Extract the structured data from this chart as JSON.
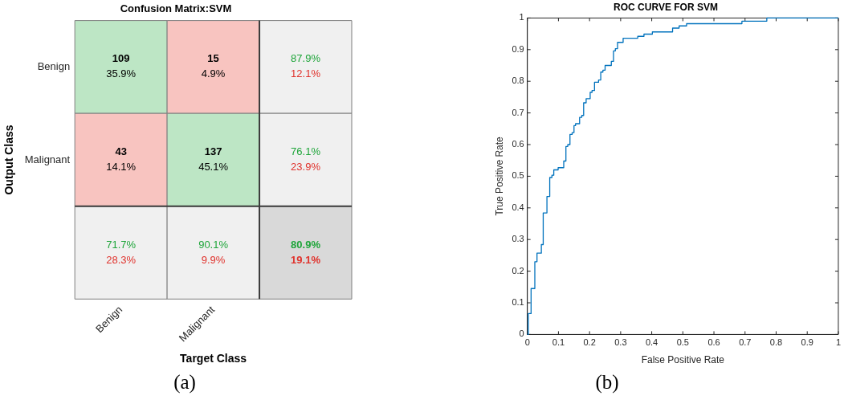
{
  "chart_data": [
    {
      "type": "heatmap",
      "title": "Confusion Matrix:SVM",
      "xlabel": "Target Class",
      "ylabel": "Output Class",
      "categories": [
        "Benign",
        "Malignant",
        null
      ],
      "y_categories": [
        "Benign",
        "Malignant",
        null
      ],
      "cells": [
        [
          109,
          15,
          87.9
        ],
        [
          43,
          137,
          76.1
        ],
        [
          71.7,
          90.1,
          80.9
        ]
      ],
      "cell_labels": [
        [
          "109",
          "15",
          "87.9%"
        ],
        [
          "43",
          "137",
          "76.1%"
        ],
        [
          "71.7%",
          "90.1%",
          "80.9%"
        ]
      ],
      "colors": [
        [
          "#bde6c5",
          "#f8c4c0",
          "#f0f0f0"
        ],
        [
          "#f8c4c0",
          "#bde6c5",
          "#f0f0f0"
        ],
        [
          "#f0f0f0",
          "#f0f0f0",
          "#d9d9d9"
        ]
      ],
      "annotations": [
        "(a)",
        "35.9%",
        "4.9%",
        "12.1%",
        "14.1%",
        "45.1%",
        "23.9%",
        "28.3%",
        "9.9%",
        "19.1%"
      ]
    },
    {
      "type": "step",
      "title": "ROC CURVE FOR SVM",
      "xlabel": "False Positive Rate",
      "ylabel": "True Positive Rate",
      "xlim": [
        0,
        1
      ],
      "ylim": [
        0,
        1
      ],
      "xticks": [
        0,
        0.1,
        0.2,
        0.3,
        0.4,
        0.5,
        0.6,
        0.7,
        0.8,
        0.9,
        1
      ],
      "yticks": [
        0,
        0.1,
        0.2,
        0.3,
        0.4,
        0.5,
        0.6,
        0.7,
        0.8,
        0.9,
        1
      ],
      "grid": false,
      "legend": false,
      "marker": "none",
      "line_style": "solid",
      "series": [
        {
          "color": "#0072bd",
          "x": [
            0,
            0.003,
            0.012,
            0.024,
            0.031,
            0.045,
            0.051,
            0.063,
            0.072,
            0.079,
            0.085,
            0.099,
            0.117,
            0.124,
            0.13,
            0.137,
            0.144,
            0.15,
            0.155,
            0.168,
            0.175,
            0.181,
            0.189,
            0.202,
            0.208,
            0.216,
            0.229,
            0.236,
            0.243,
            0.25,
            0.27,
            0.277,
            0.283,
            0.29,
            0.308,
            0.355,
            0.375,
            0.402,
            0.467,
            0.488,
            0.512,
            0.69,
            0.77,
            1
          ],
          "values": [
            0,
            0.066,
            0.145,
            0.23,
            0.257,
            0.284,
            0.384,
            0.436,
            0.496,
            0.503,
            0.52,
            0.527,
            0.548,
            0.594,
            0.6,
            0.632,
            0.638,
            0.66,
            0.666,
            0.686,
            0.692,
            0.732,
            0.745,
            0.765,
            0.771,
            0.797,
            0.804,
            0.829,
            0.835,
            0.85,
            0.863,
            0.896,
            0.903,
            0.923,
            0.936,
            0.942,
            0.949,
            0.956,
            0.968,
            0.975,
            0.982,
            0.99,
            1,
            1
          ]
        }
      ],
      "annotations": [
        "(b)"
      ]
    }
  ]
}
